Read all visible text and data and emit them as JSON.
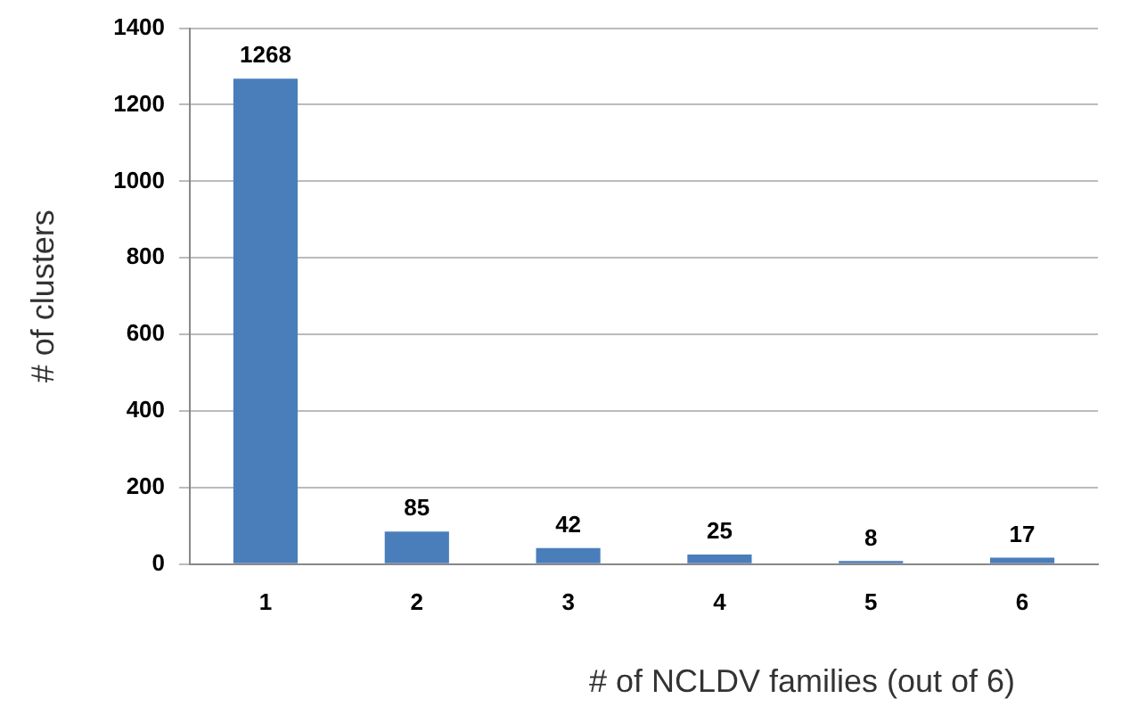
{
  "chart_data": {
    "type": "bar",
    "categories": [
      "1",
      "2",
      "3",
      "4",
      "5",
      "6"
    ],
    "values": [
      1268,
      85,
      42,
      25,
      8,
      17
    ],
    "color": "#4a7ebb",
    "xlabel": "# of NCLDV families (out of 6)",
    "ylabel": "# of clusters",
    "ylim": [
      0,
      1400
    ],
    "yticks": [
      0,
      200,
      400,
      600,
      800,
      1000,
      1200,
      1400
    ],
    "grid": "y",
    "data_labels": true
  }
}
